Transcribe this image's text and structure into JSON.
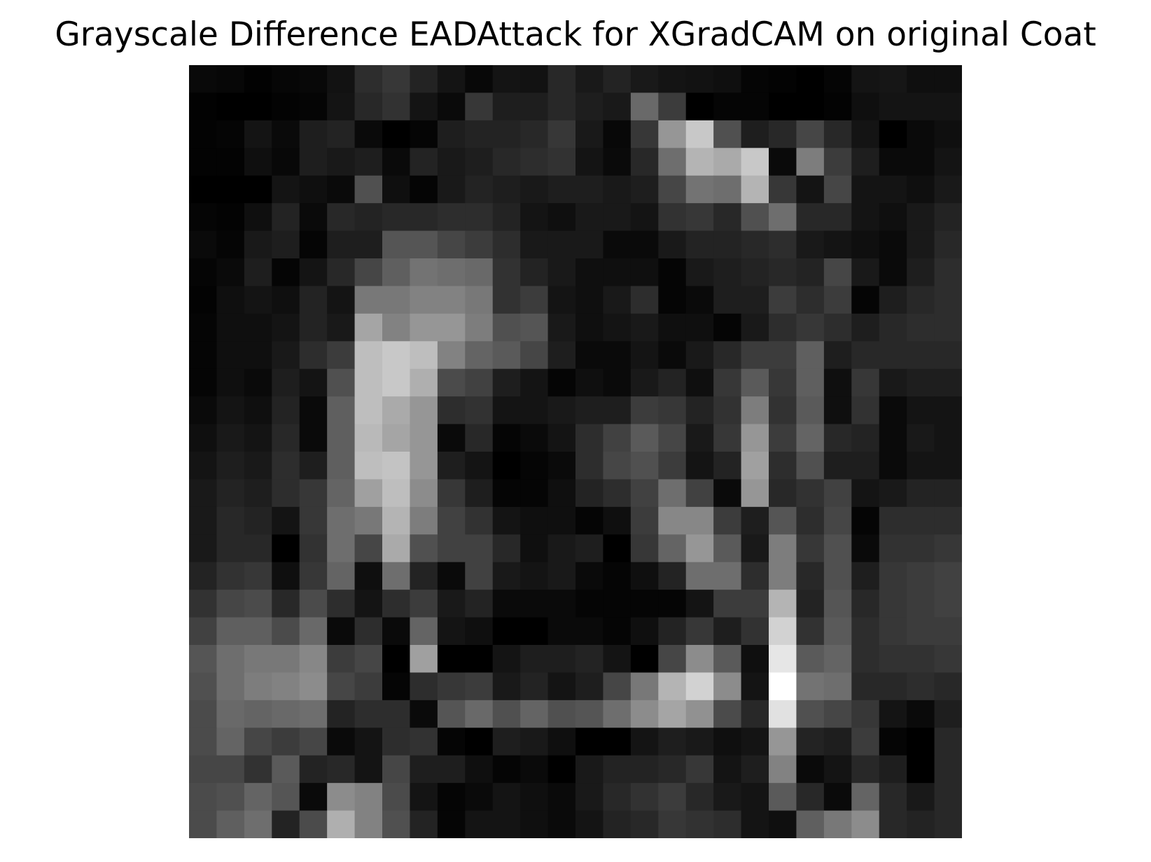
{
  "title": "Grayscale Difference EADAttack for XGradCAM on original Coat",
  "chart_data": {
    "type": "heatmap",
    "title": "Grayscale Difference EADAttack for XGradCAM on original Coat",
    "xlabel": "",
    "ylabel": "",
    "colormap": "gray",
    "value_range": [
      0,
      255
    ],
    "axes_visible": false,
    "grid": false,
    "legend": "none",
    "rows": 28,
    "cols": 28,
    "values": [
      [
        9,
        7,
        2,
        6,
        8,
        18,
        45,
        55,
        35,
        20,
        8,
        20,
        18,
        40,
        25,
        35,
        25,
        20,
        18,
        15,
        5,
        3,
        0,
        5,
        20,
        22,
        15,
        15
      ],
      [
        2,
        0,
        0,
        3,
        5,
        20,
        40,
        50,
        20,
        10,
        55,
        30,
        30,
        40,
        30,
        25,
        105,
        60,
        0,
        5,
        5,
        0,
        0,
        3,
        15,
        20,
        20,
        20
      ],
      [
        3,
        5,
        20,
        10,
        30,
        35,
        10,
        0,
        5,
        30,
        35,
        35,
        40,
        55,
        25,
        8,
        55,
        150,
        200,
        80,
        30,
        40,
        70,
        40,
        20,
        0,
        10,
        15
      ],
      [
        3,
        3,
        15,
        8,
        30,
        25,
        30,
        10,
        35,
        25,
        30,
        40,
        45,
        50,
        20,
        10,
        40,
        110,
        180,
        170,
        200,
        10,
        125,
        60,
        30,
        10,
        10,
        20
      ],
      [
        0,
        0,
        0,
        20,
        15,
        10,
        80,
        15,
        5,
        25,
        35,
        30,
        25,
        30,
        30,
        25,
        30,
        70,
        115,
        110,
        180,
        55,
        20,
        70,
        20,
        20,
        15,
        25
      ],
      [
        5,
        3,
        15,
        35,
        10,
        40,
        35,
        40,
        40,
        45,
        45,
        35,
        20,
        15,
        25,
        25,
        20,
        50,
        55,
        40,
        80,
        110,
        40,
        40,
        20,
        15,
        25,
        35
      ],
      [
        10,
        5,
        25,
        30,
        5,
        30,
        30,
        85,
        85,
        70,
        60,
        45,
        25,
        25,
        25,
        10,
        10,
        25,
        35,
        35,
        40,
        45,
        25,
        20,
        15,
        10,
        25,
        40
      ],
      [
        5,
        10,
        30,
        5,
        20,
        40,
        70,
        95,
        115,
        110,
        105,
        50,
        35,
        25,
        15,
        15,
        15,
        5,
        25,
        30,
        35,
        40,
        35,
        70,
        25,
        10,
        30,
        45
      ],
      [
        3,
        15,
        20,
        15,
        35,
        20,
        120,
        120,
        130,
        130,
        120,
        50,
        60,
        20,
        15,
        25,
        45,
        5,
        10,
        30,
        30,
        60,
        45,
        60,
        5,
        30,
        40,
        45
      ],
      [
        5,
        15,
        15,
        20,
        35,
        25,
        165,
        130,
        150,
        150,
        125,
        80,
        85,
        25,
        15,
        20,
        25,
        15,
        15,
        5,
        25,
        45,
        55,
        45,
        30,
        40,
        45,
        45
      ],
      [
        5,
        15,
        15,
        25,
        45,
        60,
        190,
        200,
        190,
        130,
        100,
        90,
        70,
        30,
        10,
        10,
        20,
        10,
        25,
        40,
        60,
        60,
        95,
        30,
        40,
        40,
        40,
        40
      ],
      [
        5,
        15,
        10,
        30,
        20,
        80,
        190,
        200,
        175,
        75,
        65,
        30,
        20,
        5,
        15,
        10,
        25,
        35,
        15,
        55,
        90,
        55,
        95,
        15,
        55,
        25,
        30,
        30
      ],
      [
        10,
        20,
        15,
        35,
        10,
        95,
        190,
        170,
        150,
        45,
        50,
        20,
        20,
        25,
        30,
        30,
        60,
        55,
        35,
        50,
        125,
        50,
        90,
        15,
        50,
        10,
        20,
        20
      ],
      [
        15,
        25,
        20,
        40,
        10,
        95,
        185,
        165,
        150,
        10,
        40,
        5,
        10,
        20,
        45,
        65,
        90,
        70,
        25,
        55,
        150,
        60,
        100,
        40,
        35,
        10,
        25,
        20
      ],
      [
        20,
        30,
        25,
        45,
        30,
        95,
        190,
        195,
        150,
        30,
        20,
        0,
        5,
        10,
        45,
        70,
        80,
        60,
        20,
        35,
        160,
        45,
        80,
        30,
        30,
        10,
        20,
        20
      ],
      [
        25,
        35,
        30,
        45,
        55,
        100,
        160,
        190,
        140,
        55,
        30,
        5,
        5,
        15,
        35,
        45,
        65,
        110,
        65,
        10,
        150,
        40,
        50,
        65,
        20,
        25,
        35,
        35
      ],
      [
        25,
        40,
        35,
        20,
        55,
        110,
        120,
        180,
        125,
        65,
        50,
        20,
        15,
        15,
        5,
        15,
        60,
        135,
        135,
        60,
        30,
        85,
        45,
        70,
        5,
        45,
        45,
        45
      ],
      [
        25,
        40,
        40,
        0,
        50,
        110,
        70,
        170,
        80,
        65,
        65,
        40,
        15,
        25,
        30,
        0,
        55,
        100,
        150,
        90,
        25,
        125,
        55,
        80,
        10,
        50,
        50,
        55
      ],
      [
        35,
        50,
        55,
        15,
        55,
        100,
        15,
        110,
        35,
        10,
        65,
        25,
        20,
        25,
        10,
        5,
        15,
        35,
        110,
        110,
        45,
        125,
        40,
        80,
        30,
        55,
        60,
        65
      ],
      [
        50,
        70,
        75,
        40,
        75,
        45,
        20,
        45,
        60,
        25,
        35,
        10,
        10,
        10,
        5,
        5,
        5,
        5,
        20,
        60,
        60,
        180,
        35,
        85,
        40,
        55,
        60,
        65
      ],
      [
        65,
        95,
        95,
        75,
        105,
        10,
        45,
        10,
        100,
        20,
        15,
        0,
        0,
        10,
        10,
        5,
        15,
        35,
        55,
        30,
        50,
        210,
        50,
        90,
        45,
        55,
        60,
        60
      ],
      [
        85,
        110,
        120,
        120,
        135,
        60,
        70,
        0,
        160,
        0,
        0,
        20,
        30,
        30,
        35,
        20,
        0,
        70,
        140,
        90,
        15,
        230,
        90,
        100,
        45,
        50,
        50,
        55
      ],
      [
        80,
        110,
        125,
        130,
        140,
        70,
        60,
        5,
        45,
        55,
        60,
        25,
        35,
        20,
        30,
        70,
        120,
        180,
        210,
        140,
        20,
        255,
        115,
        110,
        40,
        40,
        45,
        40
      ],
      [
        75,
        105,
        100,
        105,
        110,
        35,
        45,
        45,
        10,
        85,
        105,
        80,
        100,
        80,
        85,
        110,
        140,
        165,
        145,
        75,
        40,
        225,
        80,
        70,
        55,
        20,
        10,
        30
      ],
      [
        75,
        100,
        70,
        60,
        70,
        10,
        20,
        45,
        50,
        5,
        0,
        30,
        25,
        15,
        0,
        0,
        20,
        30,
        25,
        15,
        20,
        150,
        35,
        30,
        60,
        5,
        0,
        40
      ],
      [
        70,
        70,
        50,
        90,
        35,
        40,
        20,
        70,
        30,
        30,
        15,
        5,
        10,
        0,
        25,
        35,
        35,
        40,
        55,
        20,
        30,
        130,
        10,
        20,
        40,
        30,
        0,
        40
      ],
      [
        75,
        80,
        100,
        85,
        10,
        140,
        130,
        75,
        20,
        5,
        10,
        20,
        15,
        10,
        25,
        40,
        50,
        60,
        40,
        25,
        20,
        90,
        40,
        10,
        100,
        40,
        25,
        40
      ],
      [
        75,
        95,
        110,
        35,
        75,
        175,
        130,
        80,
        35,
        5,
        20,
        20,
        15,
        10,
        20,
        35,
        40,
        55,
        50,
        45,
        20,
        15,
        95,
        120,
        140,
        40,
        35,
        40
      ]
    ]
  }
}
